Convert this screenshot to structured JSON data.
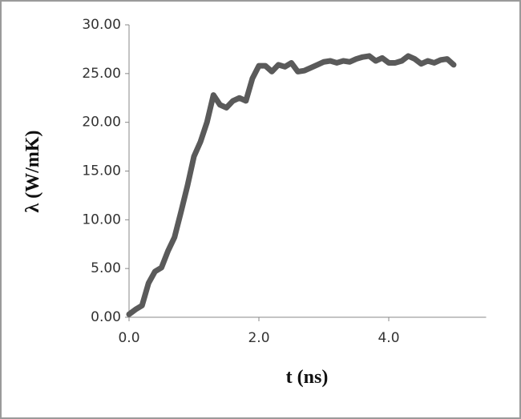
{
  "chart_data": {
    "type": "line",
    "x_label": "t (ns)",
    "y_label": "λ (W/mK)",
    "x": [
      0.0,
      0.1,
      0.2,
      0.3,
      0.4,
      0.5,
      0.6,
      0.7,
      0.8,
      0.9,
      1.0,
      1.1,
      1.2,
      1.3,
      1.4,
      1.5,
      1.6,
      1.7,
      1.8,
      1.9,
      2.0,
      2.1,
      2.2,
      2.3,
      2.4,
      2.5,
      2.6,
      2.7,
      2.8,
      2.9,
      3.0,
      3.1,
      3.2,
      3.3,
      3.4,
      3.5,
      3.6,
      3.7,
      3.8,
      3.9,
      4.0,
      4.1,
      4.2,
      4.3,
      4.4,
      4.5,
      4.6,
      4.7,
      4.8,
      4.9,
      5.0
    ],
    "series": [
      {
        "color": "#5a5a5a",
        "values": [
          0.3,
          0.8,
          1.2,
          3.5,
          4.7,
          5.1,
          6.8,
          8.2,
          10.8,
          13.5,
          16.5,
          18.0,
          20.0,
          22.8,
          21.8,
          21.5,
          22.2,
          22.5,
          22.2,
          24.5,
          25.8,
          25.8,
          25.2,
          25.9,
          25.7,
          26.1,
          25.2,
          25.3,
          25.6,
          25.9,
          26.2,
          26.3,
          26.1,
          26.3,
          26.2,
          26.5,
          26.7,
          26.8,
          26.3,
          26.6,
          26.1,
          26.1,
          26.3,
          26.8,
          26.5,
          26.0,
          26.3,
          26.1,
          26.4,
          26.5,
          25.9
        ]
      }
    ],
    "xlim": [
      0,
      5.5
    ],
    "xticks": [
      {
        "value": 0,
        "label": "0.0"
      },
      {
        "value": 2,
        "label": "2.0"
      },
      {
        "value": 4,
        "label": "4.0"
      }
    ],
    "ylim": [
      0,
      30
    ],
    "yticks": [
      {
        "value": 0,
        "label": "0.00"
      },
      {
        "value": 5,
        "label": "5.00"
      },
      {
        "value": 10,
        "label": "10.00"
      },
      {
        "value": 15,
        "label": "15.00"
      },
      {
        "value": 20,
        "label": "20.00"
      },
      {
        "value": 25,
        "label": "25.00"
      },
      {
        "value": 30,
        "label": "30.00"
      }
    ]
  }
}
